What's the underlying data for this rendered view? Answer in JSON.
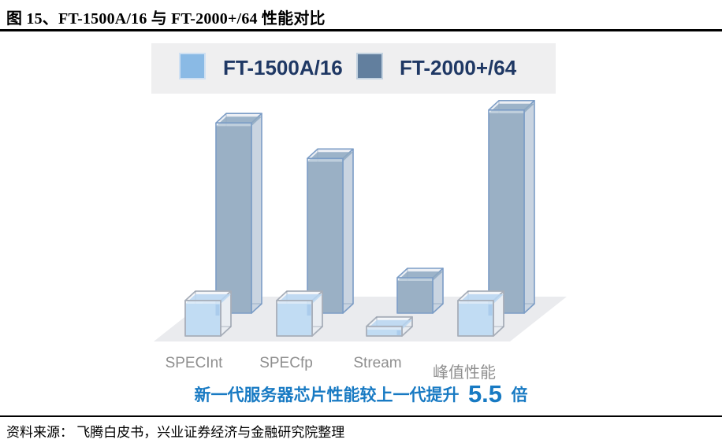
{
  "title": {
    "text": "图 15、FT-1500A/16 与 FT-2000+/64 性能对比"
  },
  "legend": {
    "items": [
      {
        "label": "FT-1500A/16",
        "color": "#8abae5"
      },
      {
        "label": "FT-2000+/64",
        "color": "#627f9e"
      }
    ]
  },
  "chart_data": {
    "type": "bar",
    "variant": "3d-glass-boxes",
    "title": "FT-1500A/16 与 FT-2000+/64 性能对比",
    "categories": [
      "SPECInt",
      "SPECfp",
      "Stream",
      "峰值性能"
    ],
    "series": [
      {
        "name": "FT-1500A/16",
        "color": "#90bfe9",
        "values": [
          1,
          1,
          0.2,
          1
        ]
      },
      {
        "name": "FT-2000+/64",
        "color": "#6887a7",
        "values": [
          5.8,
          4.7,
          1.0,
          6.2
        ]
      }
    ],
    "axis": "none",
    "unit": "relative bar height (no axis shown; values estimated from pixels, FT-1500A/16 SPECInt = 1)",
    "legend_position": "top",
    "annotation": "新一代服务器芯片性能较上一代提升 5.5 倍"
  },
  "caption": {
    "prefix": "新一代服务器芯片性能较上一代提升",
    "highlight": "5.5",
    "suffix": "倍",
    "color": "#187ac3"
  },
  "source": {
    "text": "资料来源： 飞腾白皮书，兴业证券经济与金融研究院整理"
  }
}
